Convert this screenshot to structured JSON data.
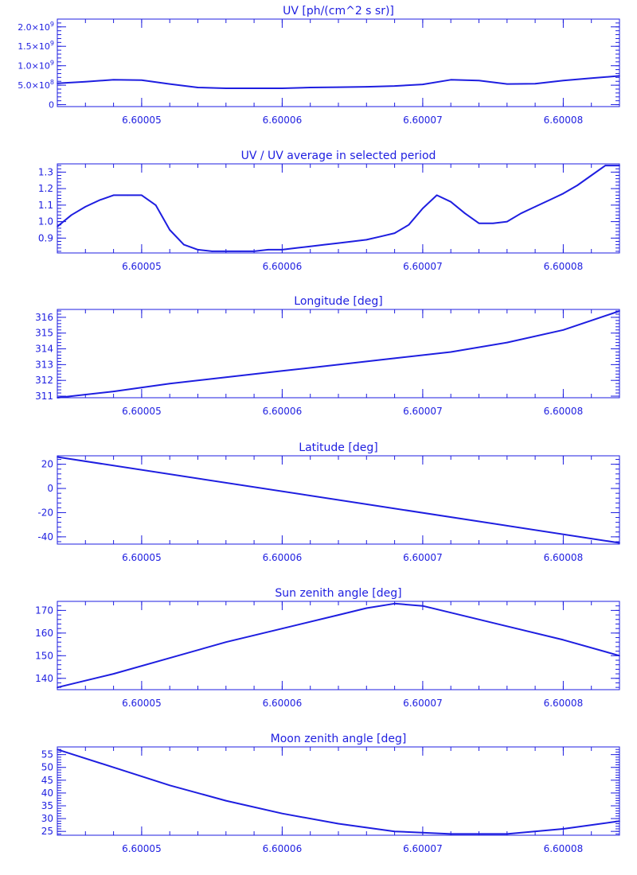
{
  "chart_data": [
    {
      "type": "line",
      "title": "UV [ph/(cm^2 s sr)]",
      "xlim": [
        6.600044,
        6.600084
      ],
      "ylim": [
        -50000000,
        2200000000
      ],
      "x_ticks": [
        6.60005,
        6.60006,
        6.60007,
        6.60008
      ],
      "x_tick_labels": [
        "6.60005",
        "6.60006",
        "6.60007",
        "6.60008"
      ],
      "y_ticks": [
        0,
        500000000,
        1000000000,
        1500000000,
        2000000000
      ],
      "y_tick_labels": [
        {
          "mantissa": "0",
          "exp": ""
        },
        {
          "mantissa": "5.0×10",
          "exp": "8"
        },
        {
          "mantissa": "1.0×10",
          "exp": "9"
        },
        {
          "mantissa": "1.5×10",
          "exp": "9"
        },
        {
          "mantissa": "2.0×10",
          "exp": "9"
        }
      ],
      "x": [
        6.600044,
        6.600046,
        6.600048,
        6.60005,
        6.600052,
        6.600054,
        6.600056,
        6.600058,
        6.60006,
        6.600062,
        6.600064,
        6.600066,
        6.600068,
        6.60007,
        6.600072,
        6.600074,
        6.600076,
        6.600078,
        6.60008,
        6.600082,
        6.600084
      ],
      "y": [
        550000000,
        590000000,
        640000000,
        630000000,
        530000000,
        440000000,
        420000000,
        420000000,
        420000000,
        440000000,
        450000000,
        460000000,
        480000000,
        520000000,
        640000000,
        620000000,
        530000000,
        540000000,
        620000000,
        680000000,
        740000000
      ]
    },
    {
      "type": "line",
      "title": "UV / UV average in selected period",
      "xlim": [
        6.600044,
        6.600084
      ],
      "ylim": [
        0.81,
        1.35
      ],
      "x_ticks": [
        6.60005,
        6.60006,
        6.60007,
        6.60008
      ],
      "x_tick_labels": [
        "6.60005",
        "6.60006",
        "6.60007",
        "6.60008"
      ],
      "y_ticks": [
        0.9,
        1.0,
        1.1,
        1.2,
        1.3
      ],
      "y_tick_labels": [
        "0.9",
        "1.0",
        "1.1",
        "1.2",
        "1.3"
      ],
      "x": [
        6.600044,
        6.600045,
        6.600046,
        6.600047,
        6.600048,
        6.600049,
        6.60005,
        6.600051,
        6.600052,
        6.600053,
        6.600054,
        6.600055,
        6.600056,
        6.600057,
        6.600058,
        6.600059,
        6.60006,
        6.600061,
        6.600062,
        6.600063,
        6.600064,
        6.600065,
        6.600066,
        6.600067,
        6.600068,
        6.600069,
        6.60007,
        6.600071,
        6.600072,
        6.600073,
        6.600074,
        6.600075,
        6.600076,
        6.600077,
        6.600078,
        6.600079,
        6.60008,
        6.600081,
        6.600082,
        6.600083,
        6.600084
      ],
      "y": [
        0.97,
        1.04,
        1.09,
        1.13,
        1.16,
        1.16,
        1.16,
        1.1,
        0.95,
        0.86,
        0.83,
        0.82,
        0.82,
        0.82,
        0.82,
        0.83,
        0.83,
        0.84,
        0.85,
        0.86,
        0.87,
        0.88,
        0.89,
        0.91,
        0.93,
        0.98,
        1.08,
        1.16,
        1.12,
        1.05,
        0.99,
        0.99,
        1.0,
        1.05,
        1.09,
        1.13,
        1.17,
        1.22,
        1.28,
        1.34,
        1.34
      ]
    },
    {
      "type": "line",
      "title": "Longitude [deg]",
      "xlim": [
        6.600044,
        6.600084
      ],
      "ylim": [
        310.9,
        316.5
      ],
      "x_ticks": [
        6.60005,
        6.60006,
        6.60007,
        6.60008
      ],
      "x_tick_labels": [
        "6.60005",
        "6.60006",
        "6.60007",
        "6.60008"
      ],
      "y_ticks": [
        311,
        312,
        313,
        314,
        315,
        316
      ],
      "y_tick_labels": [
        "311",
        "312",
        "313",
        "314",
        "315",
        "316"
      ],
      "x": [
        6.600044,
        6.600048,
        6.600052,
        6.600056,
        6.60006,
        6.600064,
        6.600068,
        6.600072,
        6.600076,
        6.60008,
        6.600084
      ],
      "y": [
        310.9,
        311.3,
        311.8,
        312.2,
        312.6,
        313.0,
        313.4,
        313.8,
        314.4,
        315.2,
        316.4
      ]
    },
    {
      "type": "line",
      "title": "Latitude [deg]",
      "xlim": [
        6.600044,
        6.600084
      ],
      "ylim": [
        -46,
        27
      ],
      "x_ticks": [
        6.60005,
        6.60006,
        6.60007,
        6.60008
      ],
      "x_tick_labels": [
        "6.60005",
        "6.60006",
        "6.60007",
        "6.60008"
      ],
      "y_ticks": [
        -40,
        -20,
        0,
        20
      ],
      "y_tick_labels": [
        "-40",
        "-20",
        "0",
        "20"
      ],
      "x": [
        6.600044,
        6.600084
      ],
      "y": [
        26,
        -45
      ]
    },
    {
      "type": "line",
      "title": "Sun zenith angle [deg]",
      "xlim": [
        6.600044,
        6.600084
      ],
      "ylim": [
        135,
        174
      ],
      "x_ticks": [
        6.60005,
        6.60006,
        6.60007,
        6.60008
      ],
      "x_tick_labels": [
        "6.60005",
        "6.60006",
        "6.60007",
        "6.60008"
      ],
      "y_ticks": [
        140,
        150,
        160,
        170
      ],
      "y_tick_labels": [
        "140",
        "150",
        "160",
        "170"
      ],
      "x": [
        6.600044,
        6.600048,
        6.600052,
        6.600056,
        6.60006,
        6.600064,
        6.600066,
        6.600068,
        6.60007,
        6.600072,
        6.600076,
        6.60008,
        6.600084
      ],
      "y": [
        136,
        142,
        149,
        156,
        162,
        168,
        171,
        173,
        172,
        169,
        163,
        157,
        150
      ]
    },
    {
      "type": "line",
      "title": "Moon zenith angle [deg]",
      "xlim": [
        6.600044,
        6.600084
      ],
      "ylim": [
        23.5,
        58
      ],
      "x_ticks": [
        6.60005,
        6.60006,
        6.60007,
        6.60008
      ],
      "x_tick_labels": [
        "6.60005",
        "6.60006",
        "6.60007",
        "6.60008"
      ],
      "y_ticks": [
        25,
        30,
        35,
        40,
        45,
        50,
        55
      ],
      "y_tick_labels": [
        "25",
        "30",
        "35",
        "40",
        "45",
        "50",
        "55"
      ],
      "x": [
        6.600044,
        6.600048,
        6.600052,
        6.600056,
        6.60006,
        6.600064,
        6.600068,
        6.600072,
        6.600076,
        6.60008,
        6.600084
      ],
      "y": [
        57,
        50,
        43,
        37,
        32,
        28,
        25,
        24,
        24,
        26,
        29
      ]
    }
  ],
  "colors": {
    "axes": "#1e1ee0",
    "line": "#1e1ee0",
    "background": "#ffffff"
  }
}
